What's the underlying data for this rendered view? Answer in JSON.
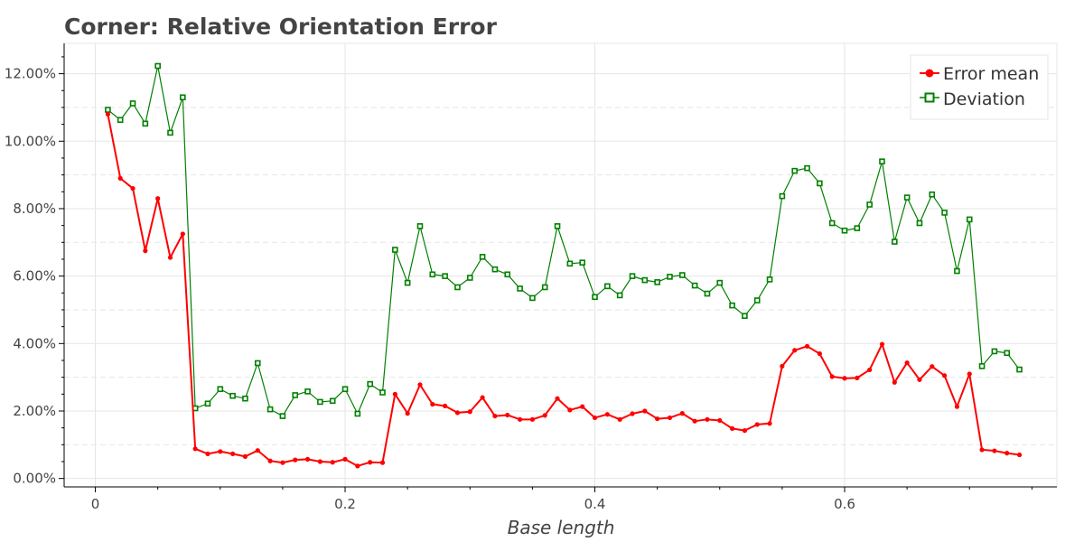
{
  "chart_data": {
    "type": "line",
    "title": "Corner: Relative Orientation Error",
    "xlabel": "Base length",
    "ylabel": "",
    "xlim": [
      -0.025,
      0.77
    ],
    "ylim": [
      -0.0025,
      0.129
    ],
    "x_ticks": [
      0,
      0.2,
      0.4,
      0.6
    ],
    "x_tick_labels": [
      "0",
      "0.2",
      "0.4",
      "0.6"
    ],
    "y_ticks": [
      0,
      0.02,
      0.04,
      0.06,
      0.08,
      0.1,
      0.12
    ],
    "y_tick_labels": [
      "0.00%",
      "2.00%",
      "4.00%",
      "6.00%",
      "8.00%",
      "10.00%",
      "12.00%"
    ],
    "grid": true,
    "legend_position": "top-right",
    "x": [
      0.01,
      0.02,
      0.03,
      0.04,
      0.05,
      0.06,
      0.07,
      0.08,
      0.09,
      0.1,
      0.11,
      0.12,
      0.13,
      0.14,
      0.15,
      0.16,
      0.17,
      0.18,
      0.19,
      0.2,
      0.21,
      0.22,
      0.23,
      0.24,
      0.25,
      0.26,
      0.27,
      0.28,
      0.29,
      0.3,
      0.31,
      0.32,
      0.33,
      0.34,
      0.35,
      0.36,
      0.37,
      0.38,
      0.39,
      0.4,
      0.41,
      0.42,
      0.43,
      0.44,
      0.45,
      0.46,
      0.47,
      0.48,
      0.49,
      0.5,
      0.51,
      0.52,
      0.53,
      0.54,
      0.55,
      0.56,
      0.57,
      0.58,
      0.59,
      0.6,
      0.61,
      0.62,
      0.63,
      0.64,
      0.65,
      0.66,
      0.67,
      0.68,
      0.69,
      0.7,
      0.71,
      0.72,
      0.73,
      0.74
    ],
    "series": [
      {
        "name": "Error mean",
        "color": "#ff0000",
        "marker": "circle-filled",
        "values": [
          0.108,
          0.089,
          0.086,
          0.0675,
          0.083,
          0.0655,
          0.0725,
          0.0088,
          0.0073,
          0.008,
          0.0073,
          0.0065,
          0.0083,
          0.0052,
          0.0047,
          0.0055,
          0.0057,
          0.005,
          0.0048,
          0.0057,
          0.0037,
          0.0048,
          0.0047,
          0.025,
          0.0193,
          0.0278,
          0.022,
          0.0215,
          0.0195,
          0.0198,
          0.024,
          0.0185,
          0.0188,
          0.0175,
          0.0175,
          0.0187,
          0.0237,
          0.0203,
          0.0213,
          0.018,
          0.019,
          0.0175,
          0.0192,
          0.02,
          0.0177,
          0.018,
          0.0193,
          0.017,
          0.0175,
          0.0172,
          0.0148,
          0.0142,
          0.016,
          0.0163,
          0.0333,
          0.038,
          0.0392,
          0.037,
          0.0302,
          0.0297,
          0.0298,
          0.0322,
          0.0398,
          0.0285,
          0.0343,
          0.0293,
          0.0332,
          0.0305,
          0.0213,
          0.031,
          0.0085,
          0.0082,
          0.0075,
          0.007
        ]
      },
      {
        "name": "Deviation",
        "color": "#008000",
        "marker": "square-open",
        "values": [
          0.1093,
          0.1063,
          0.1112,
          0.1052,
          0.1223,
          0.1025,
          0.113,
          0.0208,
          0.0222,
          0.0265,
          0.0245,
          0.0237,
          0.0342,
          0.0205,
          0.0185,
          0.0247,
          0.0258,
          0.0227,
          0.023,
          0.0265,
          0.0192,
          0.028,
          0.0255,
          0.0678,
          0.058,
          0.0748,
          0.0605,
          0.06,
          0.0567,
          0.0595,
          0.0657,
          0.062,
          0.0605,
          0.0563,
          0.0535,
          0.0567,
          0.0748,
          0.0637,
          0.064,
          0.0538,
          0.057,
          0.0543,
          0.06,
          0.0588,
          0.0582,
          0.0598,
          0.0603,
          0.0572,
          0.0548,
          0.058,
          0.0513,
          0.0482,
          0.0528,
          0.059,
          0.0837,
          0.0912,
          0.092,
          0.0875,
          0.0757,
          0.0735,
          0.0742,
          0.0812,
          0.094,
          0.0702,
          0.0833,
          0.0757,
          0.0842,
          0.0788,
          0.0615,
          0.0768,
          0.0333,
          0.0377,
          0.0372,
          0.0323
        ]
      }
    ]
  }
}
